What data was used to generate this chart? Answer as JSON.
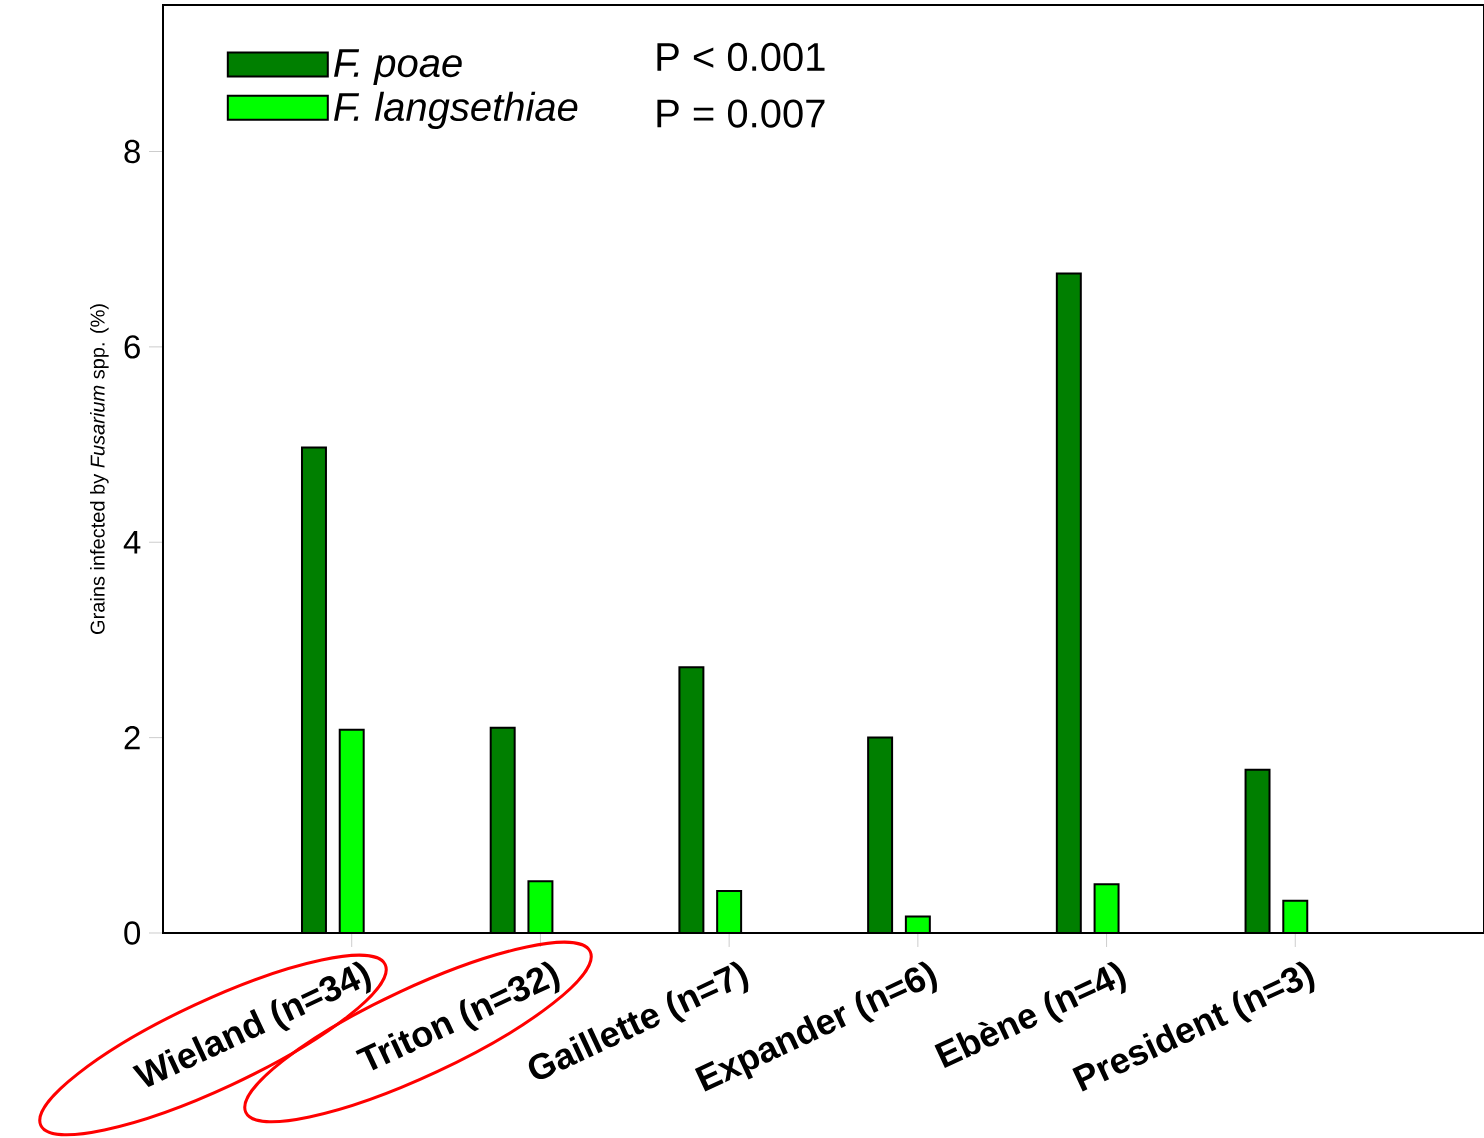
{
  "chart_data": {
    "type": "bar",
    "categories": [
      "Wieland (n=34)",
      "Triton (n=32)",
      "Gaillette (n=7)",
      "Expander (n=6)",
      "Ebène (n=4)",
      "President (n=3)"
    ],
    "series": [
      {
        "name": "F. poae",
        "color": "#007f00",
        "values": [
          4.97,
          2.1,
          2.72,
          2.0,
          6.75,
          1.67
        ]
      },
      {
        "name": "F. langsethiae",
        "color": "#00ff00",
        "values": [
          2.08,
          0.53,
          0.43,
          0.17,
          0.5,
          0.33
        ]
      }
    ],
    "ylabel": "Grains infected by *Fusarium* spp. (%)",
    "ylim": [
      0,
      9.5
    ],
    "yticks": [
      0,
      2,
      4,
      6,
      8
    ],
    "annotations": [
      "P < 0.001",
      "P = 0.007"
    ],
    "legend": "top left"
  }
}
